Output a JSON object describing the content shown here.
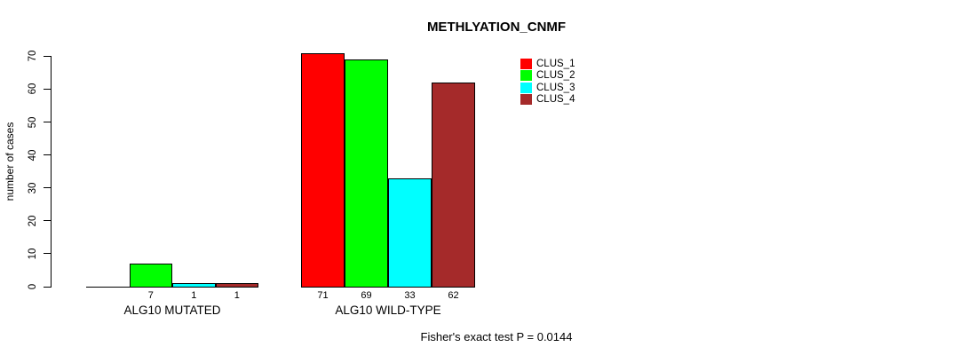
{
  "title": "METHLYATION_CNMF",
  "annotation": "Fisher's exact test P = 0.0144",
  "chart_data": {
    "type": "bar",
    "title": "METHLYATION_CNMF",
    "xlabel": "",
    "ylabel": "number of cases",
    "ylim": [
      0,
      70
    ],
    "yticks": [
      0,
      10,
      20,
      30,
      40,
      50,
      60,
      70
    ],
    "grid": false,
    "legend_position": "top-right",
    "categories": [
      "ALG10 MUTATED",
      "ALG10 WILD-TYPE"
    ],
    "series": [
      {
        "name": "CLUS_1",
        "color": "#FF0000",
        "values": [
          0,
          71
        ]
      },
      {
        "name": "CLUS_2",
        "color": "#00FF00",
        "values": [
          7,
          69
        ]
      },
      {
        "name": "CLUS_3",
        "color": "#00FFFF",
        "values": [
          1,
          33
        ]
      },
      {
        "name": "CLUS_4",
        "color": "#A52A2A",
        "values": [
          1,
          62
        ]
      }
    ],
    "bar_value_labels": {
      "show": true,
      "hide_zero": true
    },
    "footer": "Fisher's exact test P = 0.0144"
  }
}
